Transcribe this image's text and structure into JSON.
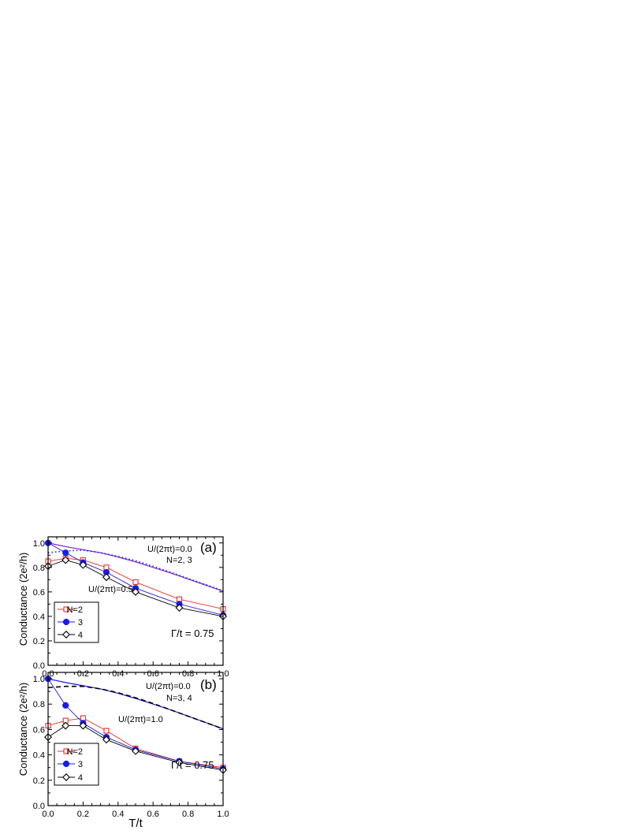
{
  "chart_data": [
    {
      "type": "line",
      "panel_label": "(a)",
      "xlabel": "",
      "ylabel": "Conductance  (2e²/h)",
      "xlim": [
        0.0,
        1.0
      ],
      "ylim": [
        0.0,
        1.05
      ],
      "x_ticks": [
        "0.0",
        "0.2",
        "0.4",
        "0.6",
        "0.8",
        "1.0"
      ],
      "y_ticks": [
        "0.0",
        "0.2",
        "0.4",
        "0.6",
        "0.8",
        "1.0"
      ],
      "gamma_label": "Γ/t = 0.75",
      "annotations": {
        "u0": "U/(2πt)=0.0",
        "nlist": "N=2, 3",
        "uval": "U/(2πt)=0.5"
      },
      "legend_position": "bottom-left",
      "series": [
        {
          "name": "N=2",
          "color": "#e8302b",
          "marker": "open-square",
          "x": [
            0.0,
            0.1,
            0.2,
            0.333,
            0.5,
            0.75,
            1.0
          ],
          "y": [
            0.85,
            0.875,
            0.86,
            0.8,
            0.68,
            0.54,
            0.46
          ]
        },
        {
          "name": "3",
          "color": "#1b1bea",
          "marker": "filled-circle",
          "x": [
            0.0,
            0.1,
            0.2,
            0.333,
            0.5,
            0.75,
            1.0
          ],
          "y": [
            1.0,
            0.92,
            0.84,
            0.76,
            0.63,
            0.5,
            0.41
          ]
        },
        {
          "name": "4",
          "color": "#000000",
          "marker": "open-diamond",
          "x": [
            0.0,
            0.1,
            0.2,
            0.333,
            0.5,
            0.75,
            1.0
          ],
          "y": [
            0.81,
            0.86,
            0.82,
            0.72,
            0.6,
            0.47,
            0.4
          ]
        }
      ],
      "reference_curves": [
        {
          "color": "#7b22c7",
          "style": "solid",
          "x": [
            0.0,
            0.1,
            0.2,
            0.3,
            0.4,
            0.5,
            0.6,
            0.7,
            0.8,
            0.9,
            1.0
          ],
          "y": [
            1.0,
            0.97,
            0.945,
            0.92,
            0.885,
            0.845,
            0.8,
            0.755,
            0.705,
            0.655,
            0.605
          ]
        },
        {
          "color": "#1b1bea",
          "style": "dotted",
          "x": [
            0.0,
            0.1,
            0.2,
            0.3,
            0.4,
            0.5,
            0.6,
            0.7,
            0.8,
            0.9,
            1.0
          ],
          "y": [
            0.92,
            0.935,
            0.94,
            0.92,
            0.89,
            0.855,
            0.81,
            0.76,
            0.71,
            0.66,
            0.61
          ]
        }
      ]
    },
    {
      "type": "line",
      "panel_label": "(b)",
      "xlabel": "T/t",
      "ylabel": "Conductance  (2e²/h)",
      "xlim": [
        0.0,
        1.0
      ],
      "ylim": [
        0.0,
        1.05
      ],
      "x_ticks": [
        "0.0",
        "0.2",
        "0.4",
        "0.6",
        "0.8",
        "1.0"
      ],
      "y_ticks": [
        "0.0",
        "0.2",
        "0.4",
        "0.6",
        "0.8",
        "1.0"
      ],
      "gamma_label": "Γ/t = 0.75",
      "annotations": {
        "u0": "U/(2πt)=0.0",
        "nlist": "N=3, 4",
        "uval": "U/(2πt)=1.0"
      },
      "legend_position": "bottom-left",
      "series": [
        {
          "name": "N=2",
          "color": "#e8302b",
          "marker": "open-square",
          "x": [
            0.0,
            0.1,
            0.2,
            0.333,
            0.5,
            0.75,
            1.0
          ],
          "y": [
            0.63,
            0.67,
            0.69,
            0.59,
            0.45,
            0.35,
            0.3
          ]
        },
        {
          "name": "3",
          "color": "#1b1bea",
          "marker": "filled-circle",
          "x": [
            0.0,
            0.1,
            0.2,
            0.333,
            0.5,
            0.75,
            1.0
          ],
          "y": [
            1.0,
            0.79,
            0.65,
            0.54,
            0.44,
            0.35,
            0.29
          ]
        },
        {
          "name": "4",
          "color": "#000000",
          "marker": "open-diamond",
          "x": [
            0.0,
            0.1,
            0.2,
            0.333,
            0.5,
            0.75,
            1.0
          ],
          "y": [
            0.54,
            0.63,
            0.63,
            0.52,
            0.43,
            0.34,
            0.28
          ]
        }
      ],
      "reference_curves": [
        {
          "color": "#1b1bea",
          "style": "solid",
          "x": [
            0.0,
            0.1,
            0.2,
            0.3,
            0.4,
            0.5,
            0.6,
            0.7,
            0.8,
            0.9,
            1.0
          ],
          "y": [
            1.0,
            0.97,
            0.945,
            0.92,
            0.885,
            0.845,
            0.8,
            0.755,
            0.705,
            0.655,
            0.605
          ]
        },
        {
          "color": "#000000",
          "style": "dashed",
          "x": [
            0.0,
            0.1,
            0.2,
            0.3,
            0.4,
            0.5,
            0.6,
            0.7,
            0.8,
            0.9,
            1.0
          ],
          "y": [
            0.93,
            0.94,
            0.94,
            0.92,
            0.89,
            0.85,
            0.805,
            0.755,
            0.705,
            0.655,
            0.605
          ]
        }
      ]
    }
  ]
}
